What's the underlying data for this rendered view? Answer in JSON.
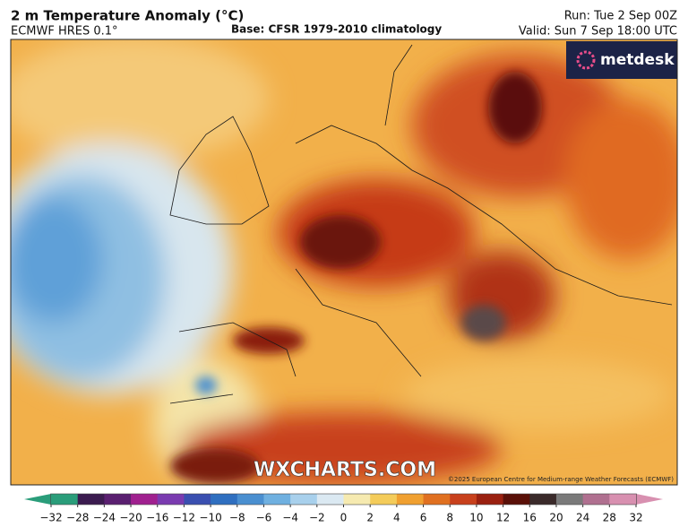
{
  "header": {
    "title": "2 m Temperature Anomaly (°C)",
    "model": "ECMWF HRES 0.1°",
    "base": "Base: CFSR 1979-2010 climatology",
    "run": "Run: Tue 2 Sep 00Z",
    "valid": "Valid: Sun 7 Sep 18:00 UTC"
  },
  "logo": "metdesk",
  "watermark": "WXCHARTS.COM",
  "credit": "©2025 European Centre for Medium-range Weather Forecasts (ECMWF)",
  "colorbar": {
    "ticks": [
      {
        "value": -32,
        "label": "−32"
      },
      {
        "value": -28,
        "label": "−28"
      },
      {
        "value": -24,
        "label": "−24"
      },
      {
        "value": -20,
        "label": "−20"
      },
      {
        "value": -16,
        "label": "−16"
      },
      {
        "value": -12,
        "label": "−12"
      },
      {
        "value": -10,
        "label": "−10"
      },
      {
        "value": -8,
        "label": "−8"
      },
      {
        "value": -6,
        "label": "−6"
      },
      {
        "value": -4,
        "label": "−4"
      },
      {
        "value": -2,
        "label": "−2"
      },
      0,
      2,
      4,
      6,
      8,
      10,
      12,
      16,
      20,
      24,
      28,
      32
    ],
    "colors": [
      "#2a9d7a",
      "#3b1b4f",
      "#5a1f70",
      "#a0208f",
      "#7a3bb0",
      "#3a4fb0",
      "#2f6fc0",
      "#4a8fd0",
      "#6fb0e0",
      "#a8d0ec",
      "#dbe9f2",
      "#f6eab0",
      "#f4cc5a",
      "#f0a030",
      "#e07020",
      "#c8401c",
      "#9a2010",
      "#5a1008",
      "#3a2a2a",
      "#7a7a7a",
      "#b07090",
      "#d890b0"
    ]
  }
}
